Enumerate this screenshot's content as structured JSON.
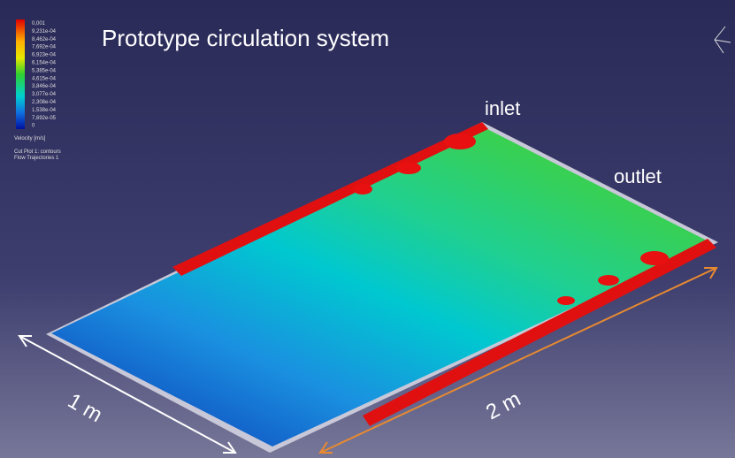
{
  "title": "Prototype circulation system",
  "legend": {
    "values": [
      "0,001",
      "9,231e-04",
      "8,462e-04",
      "7,692e-04",
      "6,923e-04",
      "6,154e-04",
      "5,385e-04",
      "4,615e-04",
      "3,846e-04",
      "3,077e-04",
      "2,308e-04",
      "1,538e-04",
      "7,692e-05",
      "0"
    ],
    "quantity": "Velocity [m/s]"
  },
  "plot_info": [
    "Cut Plot 1: contours",
    "Flow Trajectories 1"
  ],
  "labels": {
    "inlet": "inlet",
    "outlet": "outlet",
    "width": "1 m",
    "length": "2 m"
  }
}
